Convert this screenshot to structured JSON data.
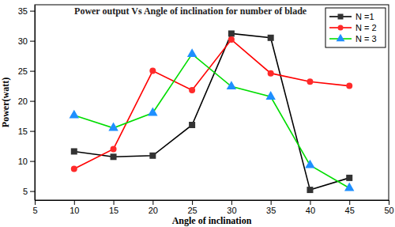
{
  "chart_data": {
    "type": "line",
    "title": "Power output Vs Angle of inclination for number of blade",
    "x_label": "Angle of inclination",
    "y_label": "Power(watt)",
    "x": [
      10,
      15,
      20,
      25,
      30,
      35,
      40,
      45
    ],
    "series": [
      {
        "name": "N =1",
        "color": "#000000",
        "marker": "square",
        "values": [
          11.6,
          10.7,
          10.9,
          16.0,
          31.2,
          30.5,
          5.2,
          7.2
        ]
      },
      {
        "name": "N = 2",
        "color": "#ff0000",
        "marker": "circle",
        "values": [
          8.7,
          12.0,
          25.0,
          21.8,
          30.2,
          24.6,
          23.2,
          22.5
        ]
      },
      {
        "name": "N = 3",
        "color": "#00dd00",
        "marker": "triangle",
        "values": [
          17.6,
          15.5,
          18.0,
          27.8,
          22.4,
          20.7,
          9.3,
          5.5
        ]
      }
    ],
    "xlim": [
      5,
      50
    ],
    "xticks": [
      5,
      10,
      15,
      20,
      25,
      30,
      35,
      40,
      45,
      50
    ],
    "ylim": [
      3.5,
      36
    ],
    "yticks": [
      5,
      10,
      15,
      20,
      25,
      30,
      35
    ],
    "grid": false,
    "legend": "upper right"
  }
}
